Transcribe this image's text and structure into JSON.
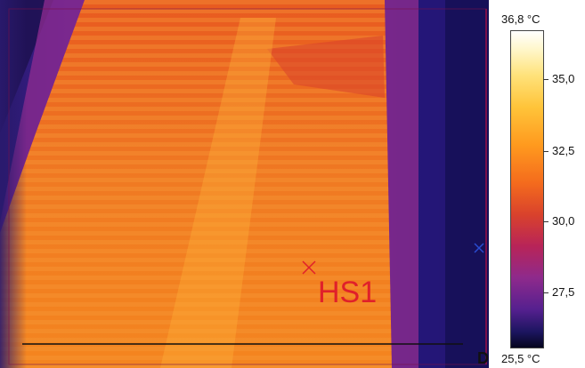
{
  "thermal_image": {
    "marker": {
      "label": "HS1",
      "icon": "crosshair-x-icon"
    },
    "edge_marker_icon": "x-mark-icon",
    "corner_text": "D"
  },
  "color_scale": {
    "max_label": "36,8 °C",
    "min_label": "25,5 °C",
    "ticks": [
      "35,0",
      "32,5",
      "30,0",
      "27,5"
    ],
    "palette": "iron"
  },
  "colors": {
    "marker": "#e0202a",
    "hot": "#ffe27a",
    "warm": "#f46b1d",
    "cool": "#55208f",
    "cold": "#05051e"
  }
}
